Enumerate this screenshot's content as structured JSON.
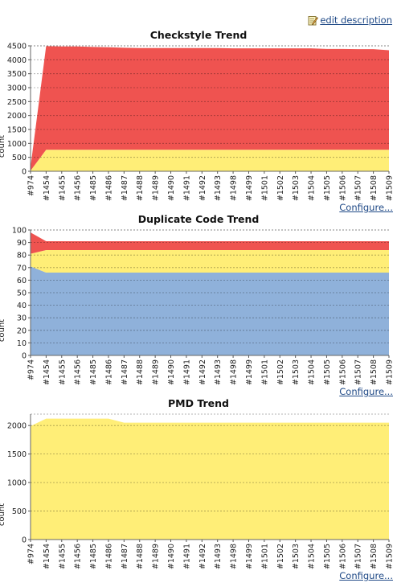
{
  "edit_description": {
    "label": "edit description",
    "icon": "edit-note-icon"
  },
  "configure_label": "Configure...",
  "builds": [
    "#974",
    "#1454",
    "#1455",
    "#1456",
    "#1485",
    "#1486",
    "#1487",
    "#1488",
    "#1489",
    "#1490",
    "#1491",
    "#1492",
    "#1493",
    "#1498",
    "#1499",
    "#1501",
    "#1502",
    "#1503",
    "#1504",
    "#1505",
    "#1506",
    "#1507",
    "#1508",
    "#1509"
  ],
  "chart_data": [
    {
      "type": "area",
      "stacked": true,
      "title": "Checkstyle Trend",
      "ylabel": "count",
      "ylim": [
        0,
        4500
      ],
      "yticks": [
        0,
        500,
        1000,
        1500,
        2000,
        2500,
        3000,
        3500,
        4000,
        4500
      ],
      "grid": true,
      "series": [
        {
          "color": "#ffee77",
          "values": [
            20,
            770,
            770,
            770,
            770,
            770,
            770,
            770,
            770,
            770,
            770,
            770,
            770,
            770,
            770,
            770,
            770,
            770,
            770,
            770,
            770,
            770,
            770,
            770
          ]
        },
        {
          "color": "#ef5350",
          "values": [
            130,
            3720,
            3710,
            3710,
            3690,
            3680,
            3660,
            3650,
            3650,
            3650,
            3650,
            3650,
            3650,
            3640,
            3640,
            3640,
            3640,
            3640,
            3640,
            3620,
            3620,
            3610,
            3610,
            3570
          ]
        }
      ]
    },
    {
      "type": "area",
      "stacked": true,
      "title": "Duplicate Code Trend",
      "ylabel": "count",
      "ylim": [
        0,
        100
      ],
      "yticks": [
        0,
        10,
        20,
        30,
        40,
        50,
        60,
        70,
        80,
        90,
        100
      ],
      "grid": true,
      "series": [
        {
          "color": "#8fb1da",
          "values": [
            71,
            66,
            66,
            66,
            66,
            66,
            66,
            66,
            66,
            66,
            66,
            66,
            66,
            66,
            66,
            66,
            66,
            66,
            66,
            66,
            66,
            66,
            66,
            66
          ]
        },
        {
          "color": "#ffee77",
          "values": [
            10,
            18,
            18,
            18,
            18,
            18,
            18,
            18,
            18,
            18,
            18,
            18,
            18,
            18,
            18,
            18,
            18,
            18,
            18,
            18,
            18,
            18,
            18,
            18
          ]
        },
        {
          "color": "#ef5350",
          "values": [
            17,
            7,
            7,
            7,
            7,
            7,
            7,
            7,
            7,
            7,
            7,
            7,
            7,
            7,
            7,
            7,
            7,
            7,
            7,
            7,
            7,
            7,
            7,
            7
          ]
        }
      ]
    },
    {
      "type": "area",
      "stacked": true,
      "title": "PMD Trend",
      "ylabel": "count",
      "ylim": [
        0,
        2200
      ],
      "yticks": [
        0,
        500,
        1000,
        1500,
        2000
      ],
      "grid": true,
      "series": [
        {
          "color": "#ffee77",
          "values": [
            1990,
            2120,
            2120,
            2120,
            2120,
            2120,
            2050,
            2050,
            2050,
            2050,
            2050,
            2050,
            2050,
            2050,
            2050,
            2050,
            2050,
            2050,
            2050,
            2050,
            2050,
            2050,
            2050,
            2050
          ]
        }
      ]
    }
  ]
}
